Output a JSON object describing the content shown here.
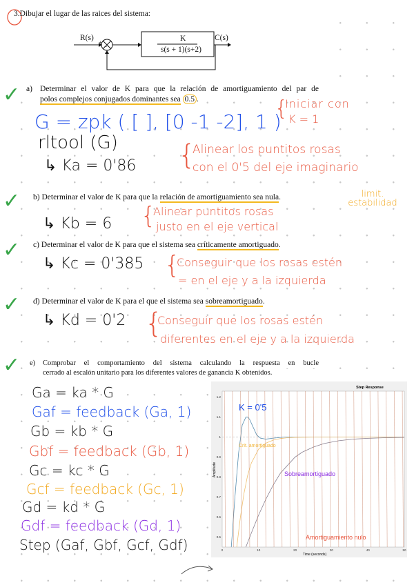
{
  "problem": {
    "number": "3.",
    "title": "Dibujar el lugar de las raices del sistema:",
    "diagram": {
      "input": "R(s)",
      "output": "C(s)",
      "numerator": "K",
      "denominator": "s(s + 1)(s+2)",
      "plus": "+",
      "minus": "−"
    }
  },
  "parts": {
    "a": {
      "label": "a)",
      "text1": "Determinar el valor de K para que la relación de amortiguamiento del par de",
      "text2": "polos complejos conjugados dominantes sea",
      "value": "0.5",
      "end": "."
    },
    "b": {
      "label": "b)",
      "pre": "Determinar el valor de K para que la ",
      "hl": "relación de amortiguamiento sea nula",
      "end": "."
    },
    "c": {
      "label": "c)",
      "pre": "Determinar el valor de K para que el sistema sea ",
      "hl": "críticamente amortiguado",
      "end": "."
    },
    "d": {
      "label": "d)",
      "pre": "Determinar el valor de K para el que el sistema sea ",
      "hl": "sobreamortiguado",
      "end": "."
    },
    "e": {
      "label": "e)",
      "text1": "Comprobar el comportamiento del sistema calculando la respuesta en bucle",
      "text2": "cerrado al escalón unitario para los diferentes valores de ganancia K obtenidos."
    }
  },
  "notes": {
    "a_code1": "G = zpk ( [ ], [0  -1  -2], 1 )",
    "a_side1a": "Iniciar con",
    "a_side1b": "K = 1",
    "a_code2": "rltool (G)",
    "a_result": "↳  Ka = 0'86",
    "a_side2a": "Alinear los puntitos rosas",
    "a_side2b": "con el 0'5 del eje imaginario",
    "b_side": "limit. estabilidad",
    "b_result": "↳  Kb = 6",
    "b_note1": "Alinear puntitos rosas",
    "b_note2": "justo en el eje vertical",
    "c_result": "↳  Kc = 0'385",
    "c_note1": "Conseguir que los rosas estén",
    "c_note2": "= en el eje y a la izquierda",
    "d_result": "↳  Kd = 0'2",
    "d_note1": "Conseguir que los rosas estén",
    "d_note2": "diferentes en el eje y a la izquierda",
    "code": [
      "Ga = ka * G",
      "Gaf = feedback (Ga, 1)",
      "Gb = kb * G",
      "Gbf = feedback (Gb, 1)",
      "Gc = kc * G",
      "Gcf = feedback (Gc, 1)",
      "Gd = kd * G",
      "Gdf = feedback (Gd, 1)",
      "Step (Gaf, Gbf, Gcf, Gdf)"
    ]
  },
  "colors": {
    "blue": "#1f4fe8",
    "red": "#e8573f",
    "orange": "#f2a81d",
    "purple": "#8a2be2",
    "check": "#3aa64a"
  },
  "chart_data": {
    "type": "line",
    "title": "Step Response",
    "xlabel": "Time (seconds)",
    "ylabel": "Amplitude",
    "xlim": [
      0,
      50
    ],
    "ylim": [
      0.45,
      1.23
    ],
    "xticks": [
      "0",
      "10",
      "20",
      "30",
      "40",
      "50"
    ],
    "yticks": [
      "0.5",
      "0.6",
      "0.7",
      "0.8",
      "0.9",
      "1",
      "1.1",
      "1.2"
    ],
    "annotations": [
      "K = 0'5",
      "Crit. amortiguado",
      "Sobreamortiguado",
      "Amortiguamiento nulo"
    ],
    "series": [
      {
        "key": "a",
        "color": "#5a8fb0",
        "x": [
          2.5,
          3.5,
          4.5,
          5.5,
          6.5,
          7,
          7.5,
          8.5,
          9.5,
          10.5,
          12,
          14,
          17,
          20,
          50
        ],
        "y": [
          0.45,
          0.7,
          0.92,
          1.06,
          1.1,
          1.1,
          1.09,
          1.05,
          1.01,
          0.995,
          0.99,
          0.995,
          1.0,
          1.0,
          1.0
        ]
      },
      {
        "key": "c",
        "color": "#f0c070",
        "x": [
          4,
          5,
          6,
          7,
          8,
          10,
          12,
          14,
          16,
          18,
          20,
          25,
          50
        ],
        "y": [
          0.45,
          0.6,
          0.72,
          0.81,
          0.87,
          0.94,
          0.97,
          0.985,
          0.993,
          0.997,
          0.999,
          1.0,
          1.0
        ]
      },
      {
        "key": "d",
        "color": "#8a8090",
        "x": [
          6.5,
          8,
          10,
          12,
          14,
          16,
          18,
          20,
          22,
          25,
          28,
          32,
          36,
          40,
          45,
          50
        ],
        "y": [
          0.45,
          0.52,
          0.61,
          0.69,
          0.76,
          0.82,
          0.86,
          0.9,
          0.925,
          0.95,
          0.968,
          0.982,
          0.99,
          0.994,
          0.997,
          0.999
        ]
      },
      {
        "key": "b",
        "color": "#c07050",
        "type": "undamped",
        "period": 4.44
      }
    ]
  }
}
